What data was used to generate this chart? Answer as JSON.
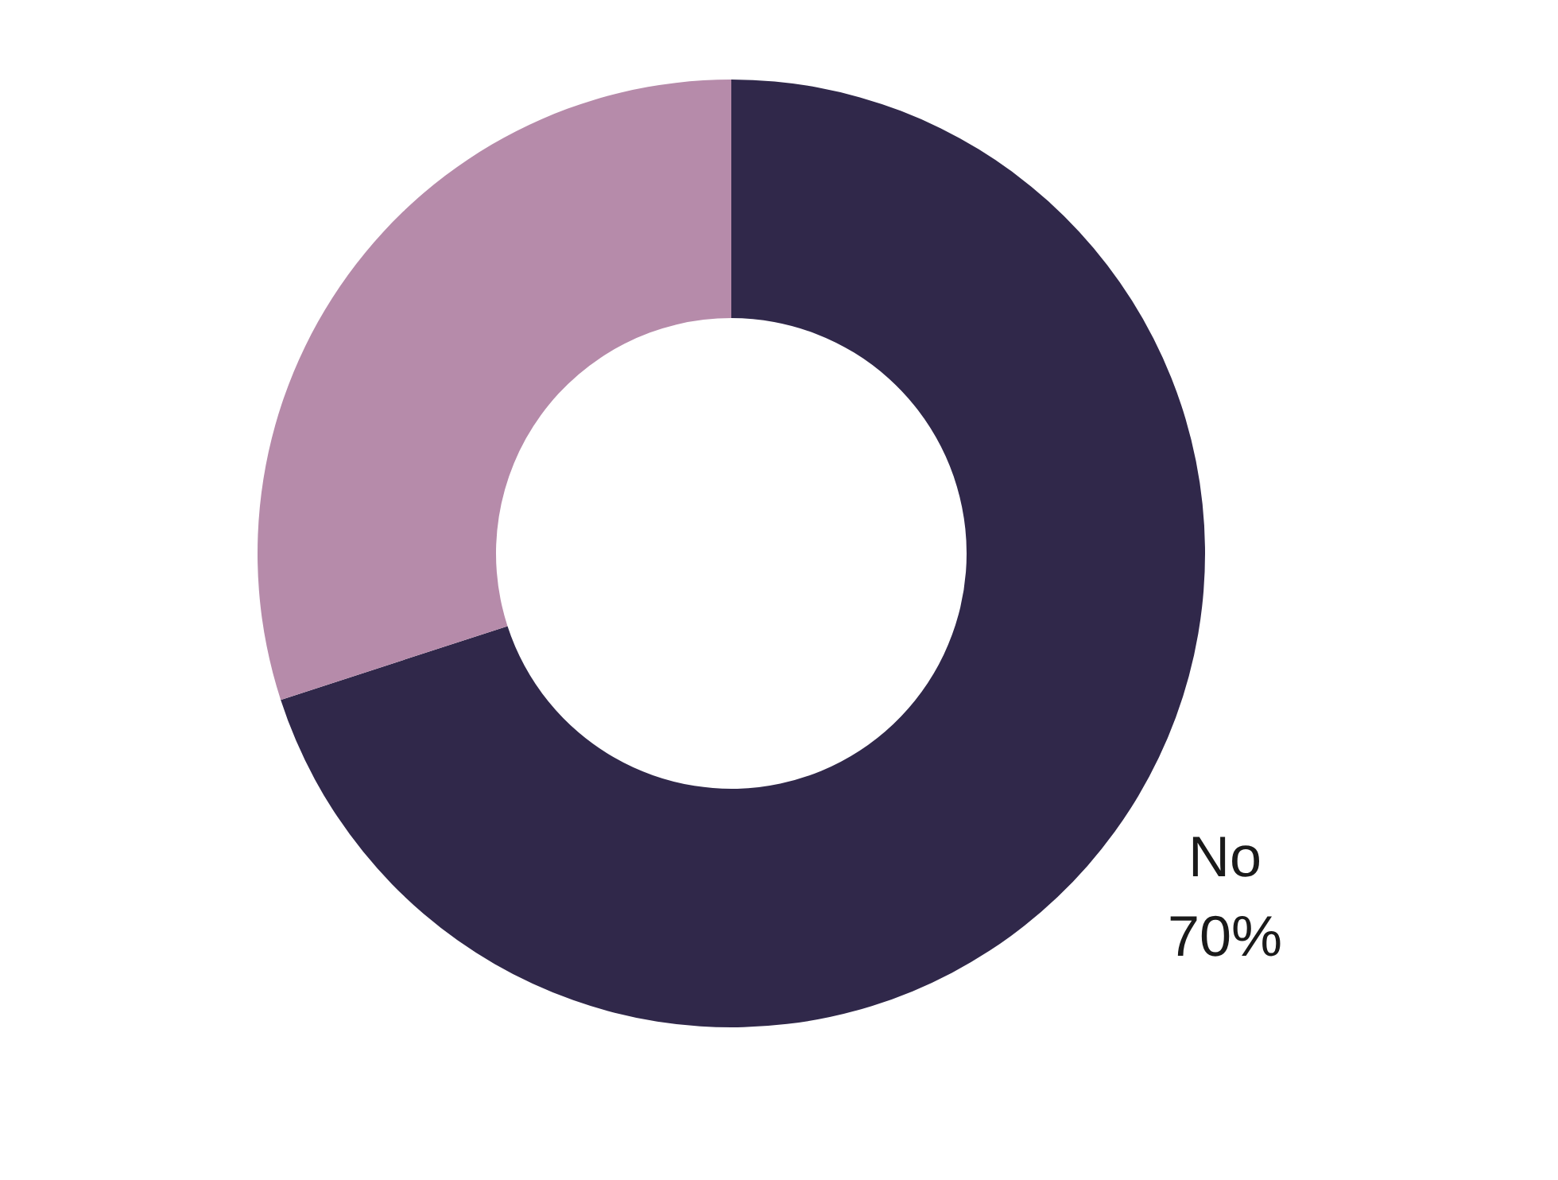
{
  "chart_data": {
    "type": "donut",
    "categories": [
      "No",
      null
    ],
    "values": [
      70,
      30
    ],
    "colors": [
      "#30284a",
      "#b68baa"
    ],
    "value_labels": [
      "70%",
      null
    ]
  }
}
